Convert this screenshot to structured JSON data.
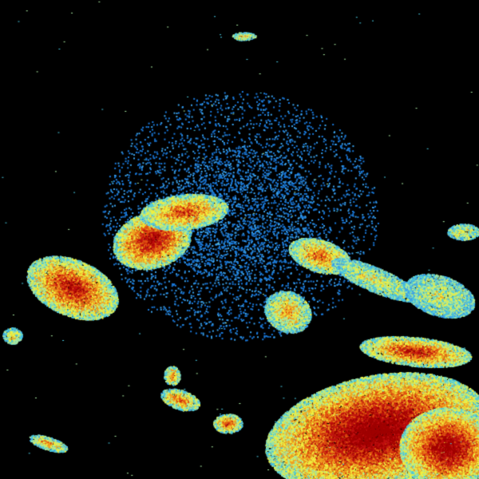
{
  "view": {
    "background": "#000000"
  },
  "palette": {
    "light_blue": "#3aa0e8",
    "blue": "#1a78d8",
    "cyan": "#48c8e0",
    "pale_green": "#a8e8a0",
    "yellow": "#f0f040",
    "orange": "#f0a020",
    "red_orange": "#e05010",
    "red": "#c01010",
    "dark_red": "#a00000"
  },
  "radar_site": {
    "marker": "radar-site-dot"
  }
}
